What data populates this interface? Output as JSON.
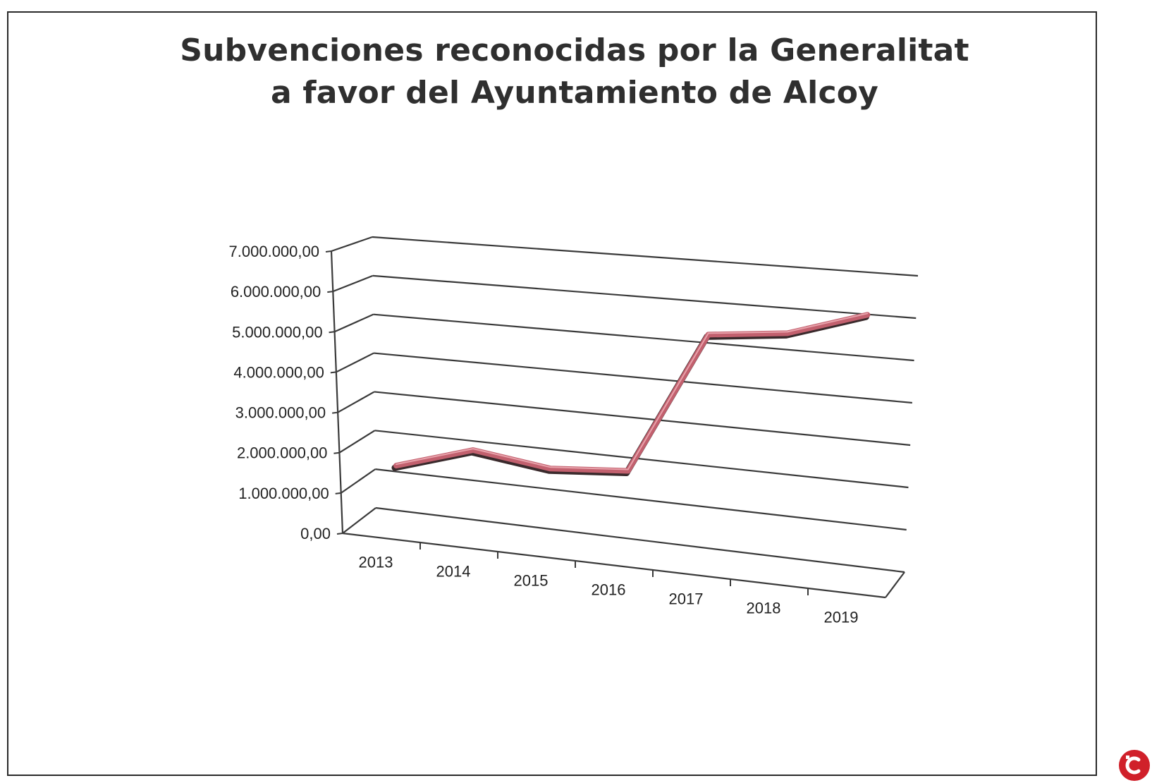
{
  "chart_data": {
    "type": "line",
    "title_lines": [
      "Subvenciones reconocidas por la Generalitat",
      "a favor del Ayuntamiento de Alcoy"
    ],
    "categories": [
      "2013",
      "2014",
      "2015",
      "2016",
      "2017",
      "2018",
      "2019"
    ],
    "series": [
      {
        "values": [
          1500000,
          2100000,
          1850000,
          2000000,
          5500000,
          5700000,
          6300000
        ],
        "color": "#c2606e"
      }
    ],
    "yticks": [
      "0,00",
      "1.000.000,00",
      "2.000.000,00",
      "3.000.000,00",
      "4.000.000,00",
      "5.000.000,00",
      "6.000.000,00",
      "7.000.000,00"
    ],
    "ylim": [
      0,
      7000000
    ],
    "grid": true,
    "projection": "3d-perspective",
    "line_color": "#c2606e",
    "line_shadow_color": "#3a2a2c"
  },
  "logo": {
    "name": "brand-logo",
    "color": "#d0202a"
  }
}
